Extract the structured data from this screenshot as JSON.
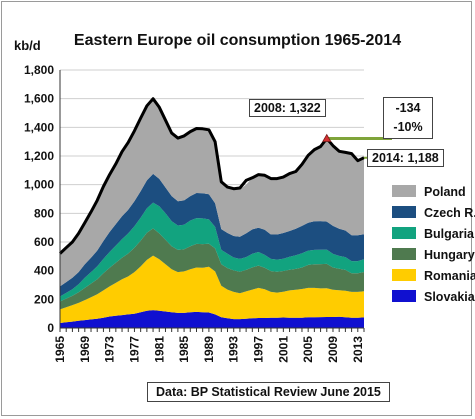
{
  "title": "Eastern Europe oil consumption 1965-2014",
  "unit_label": "kb/d",
  "source_note": "Data: BP Statistical Review June 2015",
  "annotations": {
    "peak_2008": "2008: 1,322",
    "latest_2014": "2014: 1,188",
    "change_abs": "-134",
    "change_pct": "-10%"
  },
  "colors": {
    "Slovakia": "#1010d0",
    "Romania": "#ffcc00",
    "Hungary": "#4f7a4f",
    "Bulgaria": "#12a37f",
    "Czech R.": "#1c4e80",
    "Poland": "#a8a8a8",
    "total_line": "#000000",
    "drop_line": "#7fa43a",
    "peak_marker": "#d23030"
  },
  "chart_data": {
    "type": "area",
    "stacked": true,
    "title": "Eastern Europe oil consumption 1965-2014",
    "ylabel": "kb/d",
    "ylim": [
      0,
      1800
    ],
    "yticks": [
      0,
      200,
      400,
      600,
      800,
      1000,
      1200,
      1400,
      1600,
      1800
    ],
    "ytick_labels": [
      "0",
      "200",
      "400",
      "600",
      "800",
      "1,000",
      "1,200",
      "1,400",
      "1,600",
      "1,800"
    ],
    "xlim": [
      1965,
      2014
    ],
    "xticks": [
      1965,
      1969,
      1973,
      1977,
      1981,
      1985,
      1989,
      1993,
      1997,
      2001,
      2005,
      2009,
      2013
    ],
    "grid": true,
    "legend_position": "right",
    "x": [
      1965,
      1966,
      1967,
      1968,
      1969,
      1970,
      1971,
      1972,
      1973,
      1974,
      1975,
      1976,
      1977,
      1978,
      1979,
      1980,
      1981,
      1982,
      1983,
      1984,
      1985,
      1986,
      1987,
      1988,
      1989,
      1990,
      1991,
      1992,
      1993,
      1994,
      1995,
      1996,
      1997,
      1998,
      1999,
      2000,
      2001,
      2002,
      2003,
      2004,
      2005,
      2006,
      2007,
      2008,
      2009,
      2010,
      2011,
      2012,
      2013,
      2014
    ],
    "series": [
      {
        "name": "Slovakia",
        "values": [
          35,
          40,
          45,
          50,
          55,
          60,
          65,
          72,
          80,
          85,
          90,
          95,
          100,
          110,
          120,
          125,
          120,
          115,
          110,
          105,
          105,
          110,
          112,
          110,
          108,
          95,
          75,
          68,
          62,
          62,
          65,
          68,
          70,
          70,
          72,
          72,
          73,
          72,
          72,
          72,
          75,
          75,
          76,
          77,
          77,
          78,
          75,
          72,
          72,
          74
        ]
      },
      {
        "name": "Romania",
        "values": [
          95,
          105,
          115,
          125,
          140,
          155,
          170,
          190,
          210,
          230,
          250,
          265,
          290,
          320,
          355,
          380,
          360,
          330,
          300,
          285,
          290,
          300,
          310,
          310,
          320,
          300,
          220,
          200,
          190,
          180,
          190,
          200,
          210,
          200,
          180,
          175,
          180,
          190,
          195,
          200,
          205,
          205,
          200,
          200,
          190,
          185,
          185,
          180,
          180,
          182
        ]
      },
      {
        "name": "Hungary",
        "values": [
          55,
          60,
          65,
          75,
          85,
          95,
          105,
          120,
          130,
          140,
          150,
          160,
          170,
          180,
          190,
          190,
          180,
          170,
          160,
          155,
          155,
          160,
          165,
          165,
          160,
          160,
          150,
          150,
          150,
          150,
          150,
          155,
          155,
          150,
          145,
          145,
          145,
          145,
          145,
          150,
          160,
          165,
          170,
          170,
          155,
          150,
          145,
          130,
          130,
          135
        ]
      },
      {
        "name": "Bulgaria",
        "values": [
          35,
          40,
          45,
          55,
          70,
          80,
          90,
          100,
          110,
          120,
          130,
          140,
          150,
          160,
          170,
          180,
          190,
          185,
          175,
          170,
          170,
          180,
          180,
          180,
          170,
          150,
          100,
          100,
          90,
          90,
          90,
          95,
          95,
          90,
          85,
          85,
          85,
          90,
          95,
          100,
          100,
          100,
          100,
          100,
          95,
          90,
          90,
          85,
          85,
          88
        ]
      },
      {
        "name": "Czech R.",
        "values": [
          70,
          75,
          80,
          85,
          95,
          100,
          110,
          125,
          140,
          150,
          160,
          165,
          175,
          185,
          195,
          200,
          190,
          180,
          175,
          170,
          170,
          170,
          175,
          175,
          175,
          165,
          145,
          145,
          150,
          155,
          165,
          170,
          170,
          175,
          170,
          175,
          180,
          180,
          185,
          190,
          195,
          200,
          200,
          195,
          195,
          190,
          185,
          180,
          180,
          175
        ]
      },
      {
        "name": "Poland",
        "values": [
          230,
          240,
          250,
          270,
          290,
          320,
          350,
          380,
          400,
          420,
          450,
          470,
          490,
          510,
          520,
          525,
          500,
          470,
          440,
          440,
          450,
          450,
          450,
          450,
          450,
          430,
          330,
          320,
          330,
          330,
          340,
          360,
          370,
          380,
          390,
          390,
          390,
          400,
          400,
          430,
          470,
          500,
          520,
          580,
          560,
          540,
          545,
          570,
          520,
          534
        ]
      }
    ],
    "total_line": {
      "name": "Total",
      "values": [
        520,
        560,
        600,
        660,
        735,
        810,
        890,
        987,
        1070,
        1145,
        1230,
        1295,
        1375,
        1465,
        1550,
        1600,
        1540,
        1450,
        1360,
        1325,
        1340,
        1370,
        1392,
        1390,
        1383,
        1300,
        1020,
        983,
        972,
        977,
        1030,
        1048,
        1070,
        1065,
        1042,
        1042,
        1053,
        1077,
        1092,
        1142,
        1205,
        1245,
        1266,
        1322,
        1272,
        1233,
        1225,
        1217,
        1167,
        1188
      ]
    }
  }
}
